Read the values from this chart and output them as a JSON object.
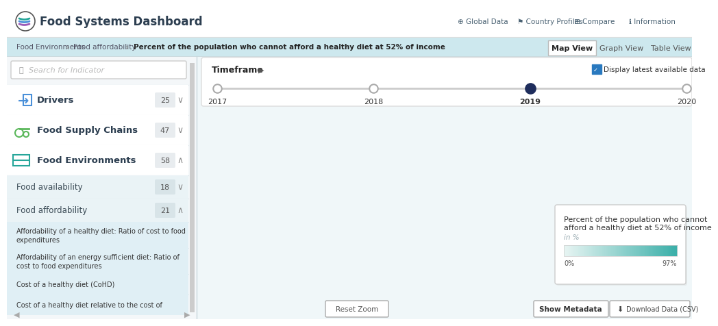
{
  "title": "Food Systems Dashboard",
  "nav_items": [
    "Global Data",
    "Country Profiles",
    "Compare",
    "Information"
  ],
  "breadcrumb": [
    "Food Environments",
    "Food affordability",
    "Percent of the population who cannot afford a healthy diet at 52% of income"
  ],
  "view_tabs": [
    "Map View",
    "Graph View",
    "Table View"
  ],
  "active_tab": "Map View",
  "timeframe_label": "Timeframe",
  "timeline_years": [
    "2017",
    "2018",
    "2019",
    "2020"
  ],
  "active_year": "2019",
  "display_latest_label": "Display latest available data",
  "sidebar_search_placeholder": "Search for Indicator",
  "sidebar_sections": [
    {
      "name": "Drivers",
      "count": 25,
      "expanded": false
    },
    {
      "name": "Food Supply Chains",
      "count": 47,
      "expanded": false
    },
    {
      "name": "Food Environments",
      "count": 58,
      "expanded": true
    }
  ],
  "subsections": [
    {
      "name": "Food availability",
      "count": 18,
      "expanded": false
    },
    {
      "name": "Food affordability",
      "count": 21,
      "expanded": true
    }
  ],
  "sub_items": [
    "Affordability of a healthy diet: Ratio of cost to food\nexpenditures",
    "Affordability of an energy sufficient diet: Ratio of\ncost to food expenditures",
    "Cost of a healthy diet (CoHD)",
    "Cost of a healthy diet relative to the cost of"
  ],
  "tooltip_line1": "Percent of the population who cannot",
  "tooltip_line2": "afford a healthy diet at 52% of income",
  "tooltip_unit": "in %",
  "tooltip_range_start": "0%",
  "tooltip_range_end": "97%",
  "reset_zoom_label": "Reset Zoom",
  "show_metadata_label": "Show Metadata",
  "download_label": "Download Data (CSV)",
  "bg_color": "#ffffff",
  "header_bg": "#ffffff",
  "nav_text_color": "#4a6273",
  "breadcrumb_bg": "#cde8ee",
  "sidebar_bg": "#f4f7f9",
  "sidebar_sub_bg": "#eaf3f6",
  "sidebar_item_bg": "#e0eff5",
  "map_area_bg": "#f0f7f9",
  "timeframe_box_bg": "#ffffff",
  "ocean_color": "#d5edf4",
  "land_no_data": "#ffffff",
  "teal_colors": [
    "#b2ddd8",
    "#6dbfb8",
    "#3aafa9",
    "#1a8c85",
    "#0d6e6a"
  ],
  "tooltip_bg": "#ffffff",
  "tooltip_border": "#cccccc",
  "gradient_colors": [
    "#e8f5f3",
    "#3aafa9"
  ],
  "section_icon_colors": {
    "Drivers": "#4a90d9",
    "Food Supply Chains": "#5cb85c",
    "Food Environments": "#26a69a"
  },
  "badge_bg": "#e8ecef",
  "sub_badge_bg": "#d8e4e8"
}
